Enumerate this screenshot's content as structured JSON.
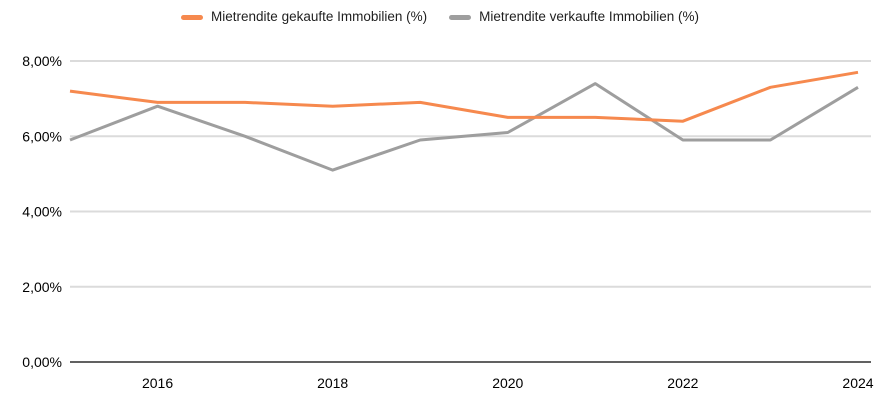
{
  "chart_data": {
    "type": "line",
    "title": "",
    "xlabel": "",
    "ylabel": "",
    "x": [
      2015,
      2016,
      2017,
      2018,
      2019,
      2020,
      2021,
      2022,
      2023,
      2024
    ],
    "x_ticks": [
      2016,
      2018,
      2020,
      2022,
      2024
    ],
    "x_tick_labels": [
      "2016",
      "2018",
      "2020",
      "2022",
      "2024"
    ],
    "ylim": [
      0,
      8
    ],
    "y_ticks": [
      0,
      2,
      4,
      6,
      8
    ],
    "y_tick_labels": [
      "0,00%",
      "2,00%",
      "4,00%",
      "6,00%",
      "8,00%"
    ],
    "grid": "horizontal",
    "legend_position": "top",
    "series": [
      {
        "name": "Mietrendite gekaufte Immobilien (%)",
        "color": "#F6894E",
        "values": [
          7.2,
          6.9,
          6.9,
          6.8,
          6.9,
          6.5,
          6.5,
          6.4,
          7.3,
          7.7
        ]
      },
      {
        "name": "Mietrendite verkaufte Immobilien (%)",
        "color": "#9E9E9E",
        "values": [
          5.9,
          6.8,
          6.0,
          5.1,
          5.9,
          6.1,
          7.4,
          5.9,
          5.9,
          7.3
        ]
      }
    ]
  },
  "colors": {
    "background": "#FFFFFF",
    "gridline": "#DBDBDB",
    "axis_line": "#616161",
    "tick_label": "#000000",
    "legend_text": "#1F1F1F"
  }
}
